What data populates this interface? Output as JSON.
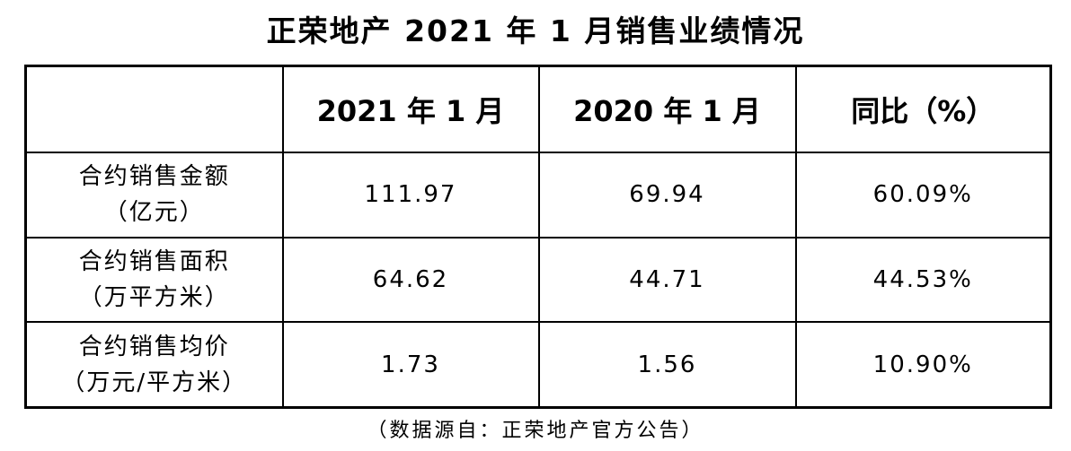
{
  "title": "正荣地产 2021 年 1 月销售业绩情况",
  "table": {
    "headers": [
      "2021 年 1 月",
      "2020 年 1 月",
      "同比（%）"
    ],
    "rows": [
      {
        "name": "合约销售金额",
        "unit": "（亿元）",
        "cells": [
          "111.97",
          "69.94",
          "60.09%"
        ]
      },
      {
        "name": "合约销售面积",
        "unit": "（万平方米）",
        "cells": [
          "64.62",
          "44.71",
          "44.53%"
        ]
      },
      {
        "name": "合约销售均价",
        "unit": "（万元/平方米）",
        "cells": [
          "1.73",
          "1.56",
          "10.90%"
        ]
      }
    ]
  },
  "source": "（数据源自：正荣地产官方公告）"
}
